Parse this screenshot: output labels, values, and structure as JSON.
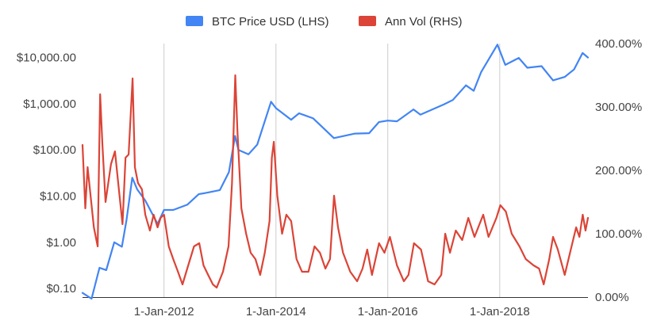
{
  "chart_data": {
    "type": "line",
    "title": "",
    "legend": {
      "placement": "top-center"
    },
    "grid": {
      "vertical": true,
      "horizontal": false
    },
    "x_axis": {
      "type": "date",
      "range": [
        "2010-07-18",
        "2019-07-31"
      ],
      "ticks": [
        {
          "date": "2012-01-01",
          "label": "1-Jan-2012"
        },
        {
          "date": "2014-01-01",
          "label": "1-Jan-2014"
        },
        {
          "date": "2016-01-01",
          "label": "1-Jan-2016"
        },
        {
          "date": "2018-01-01",
          "label": "1-Jan-2018"
        }
      ]
    },
    "y_left": {
      "scale": "log",
      "range": [
        0.065,
        20000
      ],
      "ticks": [
        {
          "value": 0.1,
          "label": "$0.10"
        },
        {
          "value": 1,
          "label": "$1.00"
        },
        {
          "value": 10,
          "label": "$10.00"
        },
        {
          "value": 100,
          "label": "$100.00"
        },
        {
          "value": 1000,
          "label": "$1,000.00"
        },
        {
          "value": 10000,
          "label": "$10,000.00"
        }
      ]
    },
    "y_right": {
      "scale": "linear",
      "range": [
        0,
        400
      ],
      "ticks": [
        {
          "value": 0,
          "label": "0.00%"
        },
        {
          "value": 100,
          "label": "100.00%"
        },
        {
          "value": 200,
          "label": "200.00%"
        },
        {
          "value": 300,
          "label": "300.00%"
        },
        {
          "value": 400,
          "label": "400.00%"
        }
      ]
    },
    "series": [
      {
        "name": "BTC Price USD (LHS)",
        "axis": "left",
        "color": "#4285f4",
        "points": [
          [
            "2010-07-18",
            0.08
          ],
          [
            "2010-09-15",
            0.06
          ],
          [
            "2010-11-06",
            0.28
          ],
          [
            "2010-12-20",
            0.25
          ],
          [
            "2011-02-10",
            1.0
          ],
          [
            "2011-04-01",
            0.8
          ],
          [
            "2011-05-01",
            3.0
          ],
          [
            "2011-06-08",
            25
          ],
          [
            "2011-07-10",
            14
          ],
          [
            "2011-09-01",
            8
          ],
          [
            "2011-11-20",
            2.5
          ],
          [
            "2012-01-01",
            5
          ],
          [
            "2012-03-01",
            5
          ],
          [
            "2012-06-01",
            6.5
          ],
          [
            "2012-08-15",
            11
          ],
          [
            "2012-10-15",
            12
          ],
          [
            "2012-12-31",
            13.5
          ],
          [
            "2013-02-28",
            33
          ],
          [
            "2013-04-09",
            200
          ],
          [
            "2013-05-01",
            100
          ],
          [
            "2013-07-05",
            80
          ],
          [
            "2013-09-01",
            130
          ],
          [
            "2013-11-30",
            1100
          ],
          [
            "2014-01-01",
            800
          ],
          [
            "2014-04-10",
            450
          ],
          [
            "2014-06-01",
            620
          ],
          [
            "2014-09-01",
            480
          ],
          [
            "2015-01-14",
            180
          ],
          [
            "2015-06-01",
            225
          ],
          [
            "2015-09-01",
            230
          ],
          [
            "2015-11-04",
            400
          ],
          [
            "2016-01-01",
            430
          ],
          [
            "2016-03-01",
            415
          ],
          [
            "2016-06-17",
            750
          ],
          [
            "2016-08-01",
            580
          ],
          [
            "2016-12-31",
            960
          ],
          [
            "2017-03-01",
            1200
          ],
          [
            "2017-05-25",
            2500
          ],
          [
            "2017-07-15",
            1900
          ],
          [
            "2017-09-01",
            4800
          ],
          [
            "2017-12-17",
            19000
          ],
          [
            "2018-02-06",
            6900
          ],
          [
            "2018-05-05",
            9800
          ],
          [
            "2018-06-30",
            6000
          ],
          [
            "2018-10-01",
            6500
          ],
          [
            "2018-12-15",
            3200
          ],
          [
            "2019-03-01",
            3800
          ],
          [
            "2019-05-01",
            5500
          ],
          [
            "2019-06-26",
            12500
          ],
          [
            "2019-07-31",
            10000
          ]
        ]
      },
      {
        "name": "Ann Vol (RHS)",
        "axis": "right",
        "color": "#db4437",
        "points": [
          [
            "2010-07-18",
            240
          ],
          [
            "2010-08-05",
            140
          ],
          [
            "2010-08-20",
            205
          ],
          [
            "2010-09-30",
            110
          ],
          [
            "2010-10-25",
            80
          ],
          [
            "2010-11-10",
            320
          ],
          [
            "2010-11-25",
            240
          ],
          [
            "2010-12-15",
            150
          ],
          [
            "2011-01-20",
            210
          ],
          [
            "2011-02-15",
            230
          ],
          [
            "2011-03-10",
            175
          ],
          [
            "2011-04-05",
            115
          ],
          [
            "2011-04-25",
            220
          ],
          [
            "2011-05-15",
            225
          ],
          [
            "2011-06-10",
            345
          ],
          [
            "2011-06-25",
            205
          ],
          [
            "2011-07-15",
            180
          ],
          [
            "2011-08-10",
            170
          ],
          [
            "2011-09-01",
            130
          ],
          [
            "2011-10-01",
            105
          ],
          [
            "2011-10-25",
            130
          ],
          [
            "2011-11-20",
            110
          ],
          [
            "2011-12-10",
            125
          ],
          [
            "2012-01-01",
            130
          ],
          [
            "2012-02-01",
            80
          ],
          [
            "2012-03-01",
            60
          ],
          [
            "2012-04-01",
            40
          ],
          [
            "2012-05-01",
            20
          ],
          [
            "2012-06-01",
            45
          ],
          [
            "2012-07-15",
            80
          ],
          [
            "2012-08-18",
            85
          ],
          [
            "2012-09-15",
            50
          ],
          [
            "2012-10-15",
            35
          ],
          [
            "2012-11-15",
            20
          ],
          [
            "2012-12-10",
            15
          ],
          [
            "2013-01-20",
            40
          ],
          [
            "2013-02-25",
            80
          ],
          [
            "2013-03-20",
            180
          ],
          [
            "2013-04-10",
            350
          ],
          [
            "2013-04-25",
            260
          ],
          [
            "2013-05-20",
            140
          ],
          [
            "2013-06-20",
            100
          ],
          [
            "2013-07-20",
            70
          ],
          [
            "2013-08-20",
            60
          ],
          [
            "2013-09-20",
            35
          ],
          [
            "2013-10-20",
            70
          ],
          [
            "2013-11-20",
            120
          ],
          [
            "2013-12-05",
            220
          ],
          [
            "2013-12-18",
            245
          ],
          [
            "2014-01-10",
            160
          ],
          [
            "2014-02-10",
            100
          ],
          [
            "2014-03-10",
            130
          ],
          [
            "2014-04-10",
            120
          ],
          [
            "2014-05-15",
            60
          ],
          [
            "2014-06-20",
            40
          ],
          [
            "2014-08-01",
            40
          ],
          [
            "2014-09-10",
            80
          ],
          [
            "2014-10-15",
            70
          ],
          [
            "2014-11-20",
            45
          ],
          [
            "2014-12-20",
            60
          ],
          [
            "2015-01-15",
            160
          ],
          [
            "2015-02-10",
            110
          ],
          [
            "2015-03-15",
            70
          ],
          [
            "2015-05-01",
            40
          ],
          [
            "2015-06-15",
            25
          ],
          [
            "2015-07-20",
            45
          ],
          [
            "2015-08-20",
            75
          ],
          [
            "2015-09-20",
            35
          ],
          [
            "2015-11-05",
            85
          ],
          [
            "2015-12-10",
            70
          ],
          [
            "2016-01-15",
            95
          ],
          [
            "2016-03-01",
            50
          ],
          [
            "2016-04-15",
            25
          ],
          [
            "2016-05-15",
            35
          ],
          [
            "2016-06-20",
            85
          ],
          [
            "2016-08-05",
            75
          ],
          [
            "2016-09-20",
            25
          ],
          [
            "2016-11-01",
            20
          ],
          [
            "2016-12-15",
            35
          ],
          [
            "2017-01-10",
            100
          ],
          [
            "2017-02-10",
            70
          ],
          [
            "2017-03-20",
            105
          ],
          [
            "2017-05-01",
            90
          ],
          [
            "2017-06-10",
            125
          ],
          [
            "2017-07-20",
            95
          ],
          [
            "2017-09-15",
            130
          ],
          [
            "2017-10-20",
            95
          ],
          [
            "2017-12-10",
            125
          ],
          [
            "2018-01-05",
            145
          ],
          [
            "2018-02-10",
            135
          ],
          [
            "2018-03-20",
            100
          ],
          [
            "2018-05-10",
            80
          ],
          [
            "2018-06-20",
            60
          ],
          [
            "2018-08-10",
            50
          ],
          [
            "2018-09-15",
            45
          ],
          [
            "2018-10-15",
            20
          ],
          [
            "2018-11-20",
            60
          ],
          [
            "2018-12-15",
            95
          ],
          [
            "2019-01-15",
            75
          ],
          [
            "2019-03-01",
            35
          ],
          [
            "2019-04-05",
            70
          ],
          [
            "2019-05-15",
            110
          ],
          [
            "2019-06-05",
            95
          ],
          [
            "2019-06-27",
            130
          ],
          [
            "2019-07-15",
            105
          ],
          [
            "2019-07-31",
            125
          ]
        ]
      }
    ]
  }
}
